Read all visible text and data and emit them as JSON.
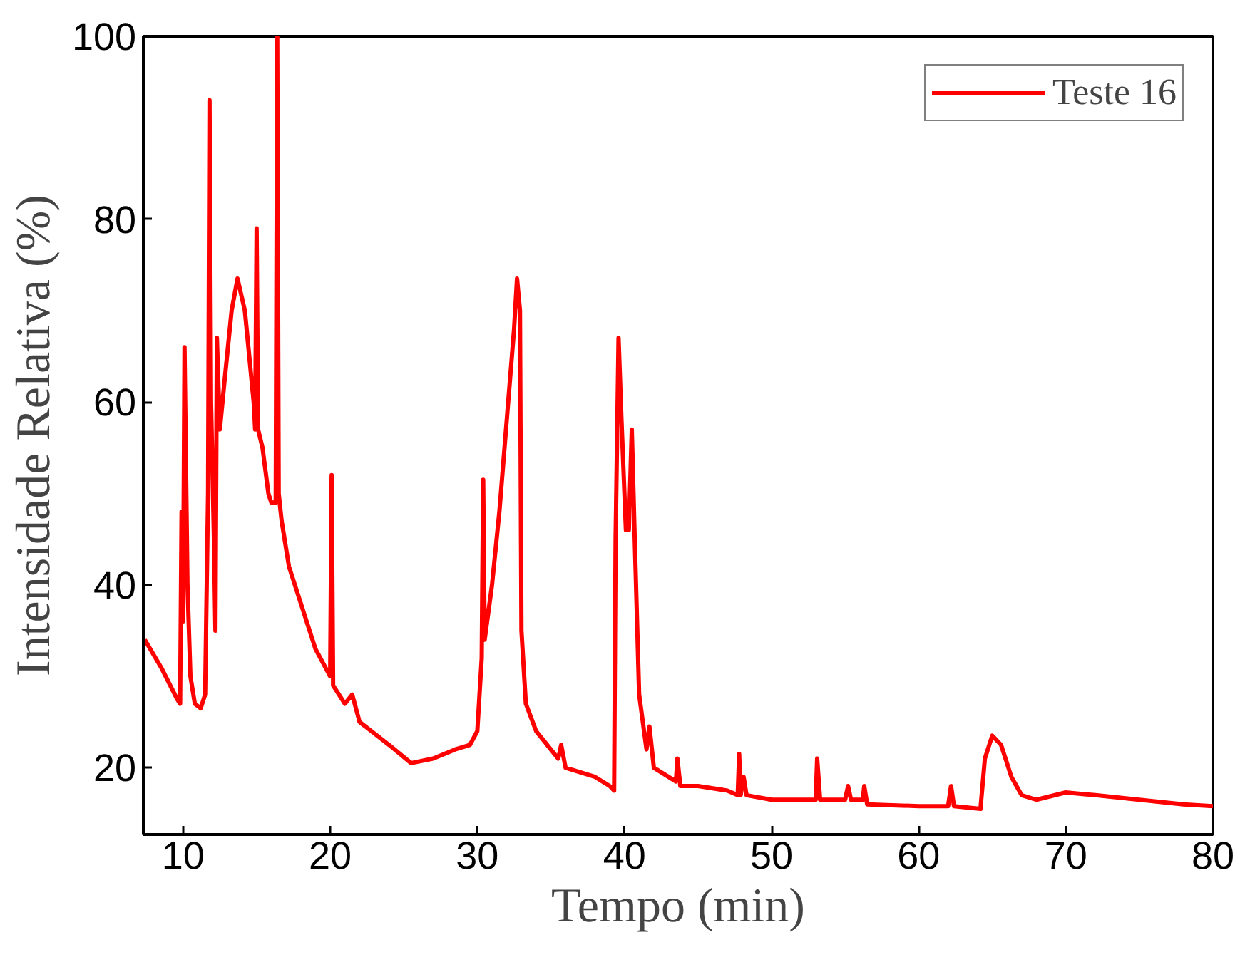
{
  "chart_data": {
    "type": "line",
    "xlabel": "Tempo (min)",
    "ylabel": "Intensidade Relativa (%)",
    "xlim": [
      7.3,
      80
    ],
    "ylim": [
      12.7,
      100
    ],
    "xticks": [
      10,
      20,
      30,
      40,
      50,
      60,
      70,
      80
    ],
    "yticks": [
      20,
      40,
      60,
      80,
      100
    ],
    "grid": false,
    "legend": "top right",
    "marker": "none",
    "line_style": "solid",
    "series": [
      {
        "name": "Teste 16",
        "color": "#ff0000",
        "x": [
          7.4,
          8.5,
          9.6,
          9.8,
          9.9,
          10.0,
          10.1,
          10.3,
          10.5,
          10.8,
          11.2,
          11.5,
          11.7,
          11.8,
          11.9,
          12.1,
          12.2,
          12.3,
          12.5,
          12.8,
          13.3,
          13.7,
          14.2,
          14.8,
          14.9,
          15.0,
          15.1,
          15.4,
          15.8,
          16.0,
          16.3,
          16.4,
          16.5,
          16.7,
          17.2,
          18,
          19,
          20,
          20.1,
          20.2,
          21,
          21.5,
          22,
          24,
          25.5,
          27,
          28.5,
          29.5,
          30,
          30.3,
          30.4,
          30.5,
          31,
          31.5,
          32,
          32.5,
          32.7,
          32.9,
          33.0,
          33.3,
          34,
          35.5,
          35.7,
          36,
          38,
          39,
          39.3,
          39.4,
          39.6,
          39.8,
          40.1,
          40.3,
          40.5,
          40.7,
          41.0,
          41.5,
          41.7,
          42,
          43.5,
          43.6,
          43.8,
          45,
          47,
          47.7,
          47.8,
          47.9,
          48.1,
          48.3,
          50,
          53,
          53.1,
          53.3,
          55,
          55.2,
          55.4,
          56.2,
          56.3,
          56.5,
          60,
          62,
          62.2,
          62.4,
          64.2,
          64.5,
          65,
          65.6,
          66.3,
          67,
          68,
          70,
          72,
          75,
          78,
          80
        ],
        "values": [
          34,
          31,
          27.5,
          27,
          48,
          36,
          66,
          40,
          30,
          27,
          26.5,
          28,
          50,
          93,
          60,
          45,
          35,
          67,
          57,
          62,
          70,
          73.5,
          70,
          60,
          57,
          79,
          57,
          55,
          50,
          49,
          49,
          100,
          50,
          47,
          42,
          38,
          33,
          30,
          52,
          29,
          27,
          28,
          25,
          22.5,
          20.5,
          21,
          22,
          22.5,
          24,
          32,
          51.5,
          34,
          40,
          48,
          58,
          68,
          73.5,
          70,
          35,
          27,
          24,
          21,
          22.5,
          20,
          19,
          18,
          17.5,
          45,
          67,
          58,
          46,
          46,
          57,
          45,
          28,
          22,
          24.5,
          20,
          18.5,
          21,
          18,
          18,
          17.5,
          17,
          21.5,
          17,
          19,
          17,
          16.5,
          16.5,
          21,
          16.5,
          16.5,
          18,
          16.5,
          16.5,
          18,
          16,
          15.8,
          15.8,
          18,
          15.8,
          15.5,
          21,
          23.5,
          22.5,
          19,
          17,
          16.5,
          17.3,
          17,
          16.5,
          16,
          15.8
        ]
      }
    ]
  }
}
